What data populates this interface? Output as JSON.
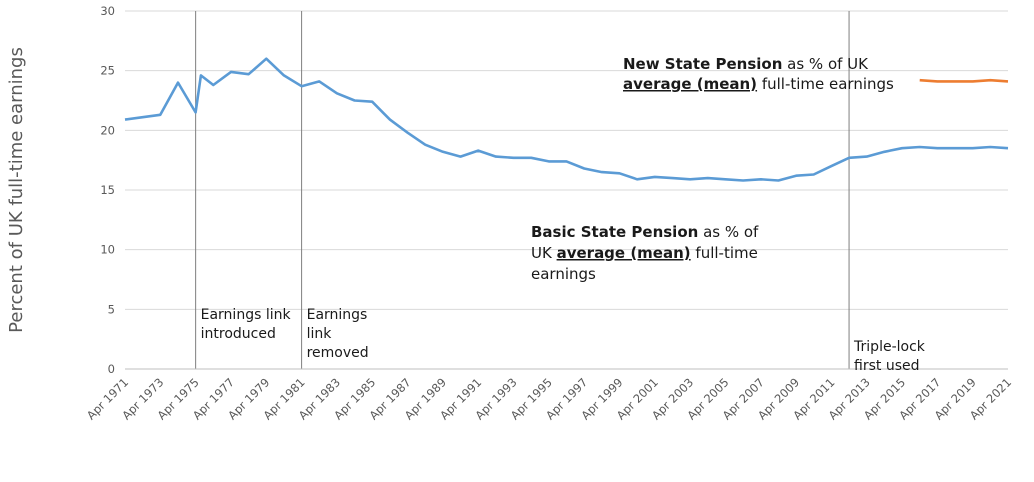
{
  "chart_data": {
    "type": "line",
    "title": "",
    "xlabel": "",
    "ylabel": "Percent of UK full-time earnings",
    "ylim": [
      0,
      30
    ],
    "yticks": [
      0,
      5,
      10,
      15,
      20,
      25,
      30
    ],
    "grid": "horizontal",
    "x": [
      "Apr 1971",
      "Apr 1972",
      "Apr 1973",
      "Apr 1974",
      "Apr 1975",
      "Apr 1976",
      "Apr 1977",
      "Apr 1978",
      "Apr 1979",
      "Apr 1980",
      "Apr 1981",
      "Apr 1982",
      "Apr 1983",
      "Apr 1984",
      "Apr 1985",
      "Apr 1986",
      "Apr 1987",
      "Apr 1988",
      "Apr 1989",
      "Apr 1990",
      "Apr 1991",
      "Apr 1992",
      "Apr 1993",
      "Apr 1994",
      "Apr 1995",
      "Apr 1996",
      "Apr 1997",
      "Apr 1998",
      "Apr 1999",
      "Apr 2000",
      "Apr 2001",
      "Apr 2002",
      "Apr 2003",
      "Apr 2004",
      "Apr 2005",
      "Apr 2006",
      "Apr 2007",
      "Apr 2008",
      "Apr 2009",
      "Apr 2010",
      "Apr 2011",
      "Apr 2012",
      "Apr 2013",
      "Apr 2014",
      "Apr 2015",
      "Apr 2016",
      "Apr 2017",
      "Apr 2018",
      "Apr 2019",
      "Apr 2020",
      "Apr 2021"
    ],
    "xtick_labels": [
      "Apr 1971",
      "Apr 1973",
      "Apr 1975",
      "Apr 1977",
      "Apr 1979",
      "Apr 1981",
      "Apr 1983",
      "Apr 1985",
      "Apr 1987",
      "Apr 1989",
      "Apr 1991",
      "Apr 1993",
      "Apr 1995",
      "Apr 1997",
      "Apr 1999",
      "Apr 2001",
      "Apr 2003",
      "Apr 2005",
      "Apr 2007",
      "Apr 2009",
      "Apr 2011",
      "Apr 2013",
      "Apr 2015",
      "Apr 2017",
      "Apr 2019",
      "Apr 2021"
    ],
    "series": [
      {
        "name": "Basic State Pension",
        "color": "#5b9bd5",
        "points": [
          [
            "Apr 1971",
            20.9
          ],
          [
            "Apr 1972",
            21.1
          ],
          [
            "Apr 1973",
            21.3
          ],
          [
            "Apr 1974",
            24.0
          ],
          [
            "Apr 1975",
            21.5
          ],
          [
            "Apr 1975 (a)",
            24.6
          ],
          [
            "Apr 1976",
            23.8
          ],
          [
            "Apr 1977",
            24.9
          ],
          [
            "Apr 1978",
            24.7
          ],
          [
            "Apr 1979",
            26.0
          ],
          [
            "Apr 1980",
            24.6
          ],
          [
            "Apr 1981",
            23.7
          ],
          [
            "Apr 1982",
            24.1
          ],
          [
            "Apr 1983",
            23.1
          ],
          [
            "Apr 1984",
            22.5
          ],
          [
            "Apr 1985",
            22.4
          ],
          [
            "Apr 1986",
            20.9
          ],
          [
            "Apr 1987",
            19.8
          ],
          [
            "Apr 1988",
            18.8
          ],
          [
            "Apr 1989",
            18.2
          ],
          [
            "Apr 1990",
            17.8
          ],
          [
            "Apr 1991",
            18.3
          ],
          [
            "Apr 1992",
            17.8
          ],
          [
            "Apr 1993",
            17.7
          ],
          [
            "Apr 1994",
            17.7
          ],
          [
            "Apr 1995",
            17.4
          ],
          [
            "Apr 1996",
            17.4
          ],
          [
            "Apr 1997",
            16.8
          ],
          [
            "Apr 1998",
            16.5
          ],
          [
            "Apr 1999",
            16.4
          ],
          [
            "Apr 2000",
            15.9
          ],
          [
            "Apr 2001",
            16.1
          ],
          [
            "Apr 2002",
            16.0
          ],
          [
            "Apr 2003",
            15.9
          ],
          [
            "Apr 2004",
            16.0
          ],
          [
            "Apr 2005",
            15.9
          ],
          [
            "Apr 2006",
            15.8
          ],
          [
            "Apr 2007",
            15.9
          ],
          [
            "Apr 2008",
            15.8
          ],
          [
            "Apr 2009",
            16.2
          ],
          [
            "Apr 2010",
            16.3
          ],
          [
            "Apr 2011",
            17.0
          ],
          [
            "Apr 2012",
            17.7
          ],
          [
            "Apr 2013",
            17.8
          ],
          [
            "Apr 2014",
            18.2
          ],
          [
            "Apr 2015",
            18.5
          ],
          [
            "Apr 2016",
            18.6
          ],
          [
            "Apr 2017",
            18.5
          ],
          [
            "Apr 2018",
            18.5
          ],
          [
            "Apr 2019",
            18.5
          ],
          [
            "Apr 2020",
            18.6
          ],
          [
            "Apr 2021",
            18.5
          ]
        ]
      },
      {
        "name": "New State Pension",
        "color": "#ed7d31",
        "points": [
          [
            "Apr 2016",
            24.2
          ],
          [
            "Apr 2017",
            24.1
          ],
          [
            "Apr 2018",
            24.1
          ],
          [
            "Apr 2019",
            24.1
          ],
          [
            "Apr 2020",
            24.2
          ],
          [
            "Apr 2021",
            24.1
          ]
        ]
      }
    ],
    "events": [
      {
        "x": "Apr 1975",
        "label_lines": [
          "Earnings link",
          "introduced"
        ]
      },
      {
        "x": "Apr 1981",
        "label_lines": [
          "Earnings",
          "link",
          "removed"
        ]
      },
      {
        "x": "Apr 2012",
        "label_lines": [
          "Triple-lock",
          "first used"
        ]
      }
    ],
    "annotations": {
      "new": {
        "b1": "New State Pension",
        "t1": " as % of UK",
        "b2": "average (mean)",
        "t2": " full-time earnings"
      },
      "basic": {
        "b1": "Basic State Pension",
        "t1": " as % of",
        "t2a": "UK ",
        "b2": "average (mean)",
        "t2b": " full-time",
        "t3": "earnings"
      }
    }
  }
}
